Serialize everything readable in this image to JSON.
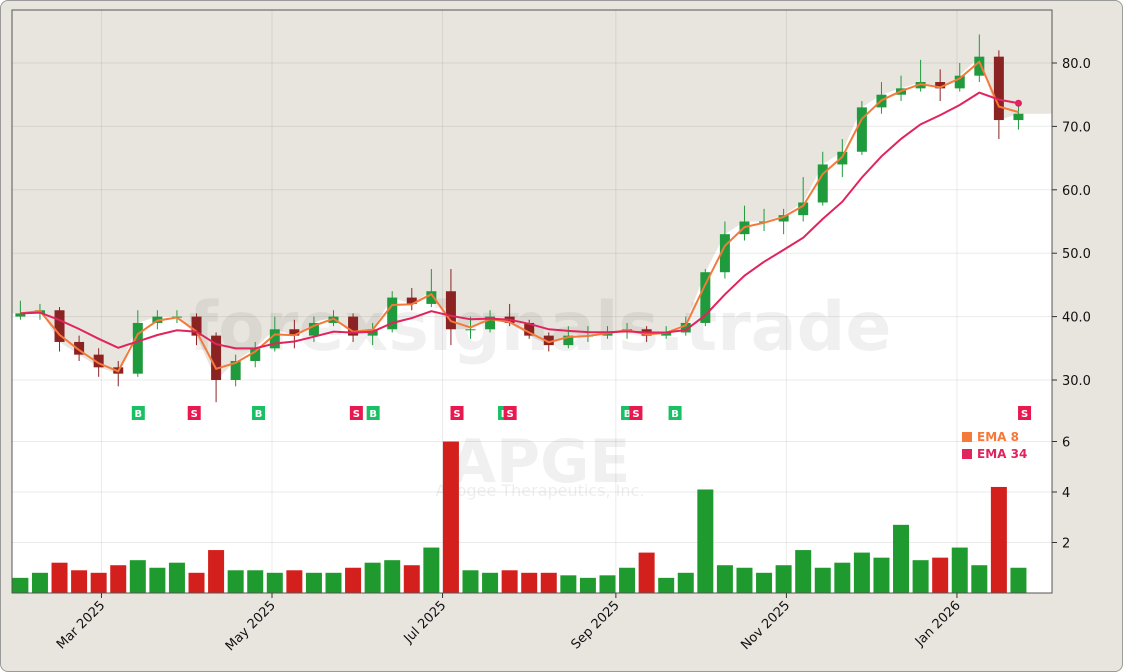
{
  "chart_data": [
    {
      "type": "candlestick",
      "ticker_watermark": "APGE",
      "company_watermark": "Apogee Therapeutics, Inc.",
      "site_watermark": "forexsignals.trade",
      "ylim": [
        26,
        88
      ],
      "yticks": [
        30,
        40,
        50,
        60,
        70,
        80
      ],
      "ytick_labels": [
        "30.0",
        "40.0",
        "50.0",
        "60.0",
        "70.0",
        "80.0"
      ],
      "xlim": [
        "2025-01-28",
        "2026-02-04"
      ],
      "xticks": [
        "2025-03-01",
        "2025-05-01",
        "2025-07-01",
        "2025-09-01",
        "2025-11-01",
        "2026-01-01"
      ],
      "xtick_labels": [
        "Mar 2025",
        "May 2025",
        "Jul 2025",
        "Sep 2025",
        "Nov 2025",
        "Jan 2026"
      ],
      "grid": true,
      "colors": {
        "up": "#1f9a3c",
        "down": "#8c2323",
        "ema8": "#f5793a",
        "ema34": "#e0245e",
        "buy": "#19c064",
        "sell": "#e8194f",
        "fill_above": "#e8e5df"
      },
      "legend": {
        "placement": "right",
        "entries": [
          {
            "label": "EMA 8",
            "color": "#f5793a"
          },
          {
            "label": "EMA 34",
            "color": "#e0245e"
          }
        ]
      },
      "ema_periods": [
        8,
        34
      ],
      "candles": [
        {
          "d": "2025-01-31",
          "o": 40,
          "h": 42.5,
          "l": 39.5,
          "c": 40.5
        },
        {
          "d": "2025-02-07",
          "o": 40.5,
          "h": 42,
          "l": 39.5,
          "c": 41
        },
        {
          "d": "2025-02-14",
          "o": 41,
          "h": 41.5,
          "l": 34.5,
          "c": 36
        },
        {
          "d": "2025-02-21",
          "o": 36,
          "h": 37,
          "l": 33,
          "c": 34
        },
        {
          "d": "2025-02-28",
          "o": 34,
          "h": 35,
          "l": 30.5,
          "c": 32
        },
        {
          "d": "2025-03-07",
          "o": 32,
          "h": 33,
          "l": 29,
          "c": 31
        },
        {
          "d": "2025-03-14",
          "o": 31,
          "h": 41,
          "l": 30.5,
          "c": 39
        },
        {
          "d": "2025-03-21",
          "o": 39,
          "h": 41,
          "l": 38,
          "c": 40
        },
        {
          "d": "2025-03-28",
          "o": 40,
          "h": 41,
          "l": 39,
          "c": 40
        },
        {
          "d": "2025-04-04",
          "o": 40,
          "h": 40.5,
          "l": 35.5,
          "c": 37
        },
        {
          "d": "2025-04-11",
          "o": 37,
          "h": 37.5,
          "l": 26.5,
          "c": 30
        },
        {
          "d": "2025-04-18",
          "o": 30,
          "h": 34,
          "l": 29,
          "c": 33
        },
        {
          "d": "2025-04-25",
          "o": 33,
          "h": 36,
          "l": 32,
          "c": 35
        },
        {
          "d": "2025-05-02",
          "o": 35,
          "h": 40,
          "l": 34.5,
          "c": 38
        },
        {
          "d": "2025-05-09",
          "o": 38,
          "h": 39.5,
          "l": 35,
          "c": 37
        },
        {
          "d": "2025-05-16",
          "o": 37,
          "h": 40,
          "l": 36,
          "c": 39
        },
        {
          "d": "2025-05-23",
          "o": 39,
          "h": 41,
          "l": 38.5,
          "c": 40
        },
        {
          "d": "2025-05-30",
          "o": 40,
          "h": 40.5,
          "l": 36,
          "c": 37
        },
        {
          "d": "2025-06-06",
          "o": 37,
          "h": 39,
          "l": 35.5,
          "c": 38
        },
        {
          "d": "2025-06-13",
          "o": 38,
          "h": 44,
          "l": 37.5,
          "c": 43
        },
        {
          "d": "2025-06-20",
          "o": 43,
          "h": 44.5,
          "l": 41,
          "c": 42
        },
        {
          "d": "2025-06-27",
          "o": 42,
          "h": 47.5,
          "l": 41.5,
          "c": 44
        },
        {
          "d": "2025-07-04",
          "o": 44,
          "h": 47.5,
          "l": 35.5,
          "c": 38
        },
        {
          "d": "2025-07-11",
          "o": 38,
          "h": 40,
          "l": 36.5,
          "c": 38
        },
        {
          "d": "2025-07-18",
          "o": 38,
          "h": 41,
          "l": 37.5,
          "c": 40
        },
        {
          "d": "2025-07-25",
          "o": 40,
          "h": 42,
          "l": 38.5,
          "c": 39
        },
        {
          "d": "2025-08-01",
          "o": 39,
          "h": 39.5,
          "l": 36.5,
          "c": 37
        },
        {
          "d": "2025-08-08",
          "o": 37,
          "h": 37.5,
          "l": 34.5,
          "c": 35.5
        },
        {
          "d": "2025-08-15",
          "o": 35.5,
          "h": 38.5,
          "l": 35,
          "c": 37
        },
        {
          "d": "2025-08-22",
          "o": 37,
          "h": 38.5,
          "l": 36,
          "c": 37
        },
        {
          "d": "2025-08-29",
          "o": 37,
          "h": 38.5,
          "l": 36.5,
          "c": 37.5
        },
        {
          "d": "2025-09-05",
          "o": 37.5,
          "h": 39,
          "l": 36.5,
          "c": 38
        },
        {
          "d": "2025-09-12",
          "o": 38,
          "h": 38.5,
          "l": 36,
          "c": 37
        },
        {
          "d": "2025-09-19",
          "o": 37,
          "h": 38.5,
          "l": 36.5,
          "c": 37.5
        },
        {
          "d": "2025-09-26",
          "o": 37.5,
          "h": 40,
          "l": 37,
          "c": 39
        },
        {
          "d": "2025-10-03",
          "o": 39,
          "h": 47.5,
          "l": 38.5,
          "c": 47
        },
        {
          "d": "2025-10-10",
          "o": 47,
          "h": 55,
          "l": 46,
          "c": 53
        },
        {
          "d": "2025-10-17",
          "o": 53,
          "h": 57.5,
          "l": 52,
          "c": 55
        },
        {
          "d": "2025-10-24",
          "o": 55,
          "h": 57,
          "l": 53.5,
          "c": 55
        },
        {
          "d": "2025-10-31",
          "o": 55,
          "h": 57,
          "l": 53,
          "c": 56
        },
        {
          "d": "2025-11-07",
          "o": 56,
          "h": 62,
          "l": 55,
          "c": 58
        },
        {
          "d": "2025-11-14",
          "o": 58,
          "h": 66,
          "l": 57.5,
          "c": 64
        },
        {
          "d": "2025-11-21",
          "o": 64,
          "h": 68,
          "l": 62,
          "c": 66
        },
        {
          "d": "2025-11-28",
          "o": 66,
          "h": 74,
          "l": 65.5,
          "c": 73
        },
        {
          "d": "2025-12-05",
          "o": 73,
          "h": 77,
          "l": 72,
          "c": 75
        },
        {
          "d": "2025-12-12",
          "o": 75,
          "h": 78,
          "l": 74,
          "c": 76
        },
        {
          "d": "2025-12-19",
          "o": 76,
          "h": 80.5,
          "l": 75.5,
          "c": 77
        },
        {
          "d": "2025-12-26",
          "o": 77,
          "h": 79,
          "l": 74,
          "c": 76
        },
        {
          "d": "2026-01-02",
          "o": 76,
          "h": 80,
          "l": 75.5,
          "c": 78
        },
        {
          "d": "2026-01-09",
          "o": 78,
          "h": 84.5,
          "l": 77,
          "c": 81
        },
        {
          "d": "2026-01-16",
          "o": 81,
          "h": 82,
          "l": 68,
          "c": 71
        },
        {
          "d": "2026-01-23",
          "o": 71,
          "h": 74,
          "l": 69.5,
          "c": 72
        }
      ],
      "signals": [
        {
          "d": "2025-03-14",
          "type": "B"
        },
        {
          "d": "2025-04-03",
          "type": "S"
        },
        {
          "d": "2025-04-26",
          "type": "B"
        },
        {
          "d": "2025-05-31",
          "type": "S"
        },
        {
          "d": "2025-06-06",
          "type": "B"
        },
        {
          "d": "2025-07-06",
          "type": "S"
        },
        {
          "d": "2025-07-23",
          "type": "B"
        },
        {
          "d": "2025-07-25",
          "type": "S"
        },
        {
          "d": "2025-09-05",
          "type": "B"
        },
        {
          "d": "2025-09-08",
          "type": "S"
        },
        {
          "d": "2025-09-22",
          "type": "B"
        },
        {
          "d": "2026-01-25",
          "type": "S"
        }
      ]
    },
    {
      "type": "bar",
      "name": "volume",
      "ylim": [
        0,
        7
      ],
      "yticks": [
        2,
        4,
        6
      ],
      "ytick_labels": [
        "2",
        "4",
        "6"
      ],
      "colors": {
        "up": "#1f9a2e",
        "down": "#d4201c"
      },
      "values": [
        0.6,
        0.8,
        1.2,
        0.9,
        0.8,
        1.1,
        1.3,
        1.0,
        1.2,
        0.8,
        1.7,
        0.9,
        0.9,
        0.8,
        0.9,
        0.8,
        0.8,
        1.0,
        1.2,
        1.3,
        1.1,
        1.8,
        6.0,
        0.9,
        0.8,
        0.9,
        0.8,
        0.8,
        0.7,
        0.6,
        0.7,
        1.0,
        1.6,
        0.6,
        0.8,
        4.1,
        1.1,
        1.0,
        0.8,
        1.1,
        1.7,
        1.0,
        1.2,
        1.6,
        1.4,
        2.7,
        1.3,
        1.4,
        1.8,
        1.1,
        4.2,
        1.0
      ]
    }
  ]
}
